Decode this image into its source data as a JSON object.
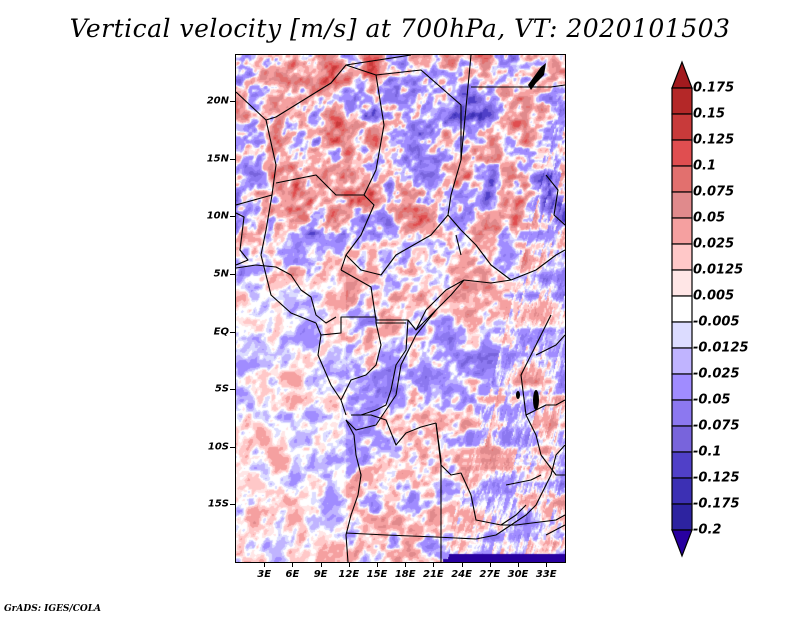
{
  "title": "Vertical velocity [m/s] at 700hPa, VT: 2020101503",
  "credit": "GrADS: IGES/COLA",
  "map": {
    "variable": "Vertical velocity",
    "units": "m/s",
    "level": "700hPa",
    "valid_time": "2020101503",
    "lon_range": [
      0,
      35
    ],
    "lat_range": [
      -20,
      24
    ],
    "y_axis_labels": [
      {
        "label": "20N",
        "lat": 20
      },
      {
        "label": "15N",
        "lat": 15
      },
      {
        "label": "10N",
        "lat": 10
      },
      {
        "label": "5N",
        "lat": 5
      },
      {
        "label": "EQ",
        "lat": 0
      },
      {
        "label": "5S",
        "lat": -5
      },
      {
        "label": "10S",
        "lat": -10
      },
      {
        "label": "15S",
        "lat": -15
      }
    ],
    "x_axis_labels": [
      {
        "label": "3E",
        "lon": 3
      },
      {
        "label": "6E",
        "lon": 6
      },
      {
        "label": "9E",
        "lon": 9
      },
      {
        "label": "12E",
        "lon": 12
      },
      {
        "label": "15E",
        "lon": 15
      },
      {
        "label": "18E",
        "lon": 18
      },
      {
        "label": "21E",
        "lon": 21
      },
      {
        "label": "24E",
        "lon": 24
      },
      {
        "label": "27E",
        "lon": 27
      },
      {
        "label": "30E",
        "lon": 30
      },
      {
        "label": "33E",
        "lon": 33
      }
    ]
  },
  "colorbar": {
    "labels": [
      "0.175",
      "0.15",
      "0.125",
      "0.1",
      "0.075",
      "0.05",
      "0.025",
      "0.0125",
      "0.005",
      "-0.005",
      "-0.0125",
      "-0.025",
      "-0.05",
      "-0.075",
      "-0.1",
      "-0.125",
      "-0.175",
      "-0.2"
    ],
    "colors": [
      "#a21a1e",
      "#b42828",
      "#c83a3a",
      "#e04e50",
      "#e2706e",
      "#e08a8c",
      "#f5a0a0",
      "#ffc8c8",
      "#ffe6e6",
      "#ffffff",
      "#dcdcff",
      "#c0b4ff",
      "#a08cff",
      "#8c78f0",
      "#7864dc",
      "#5040c8",
      "#3c30b4",
      "#2d23a0",
      "#2800a0"
    ]
  }
}
